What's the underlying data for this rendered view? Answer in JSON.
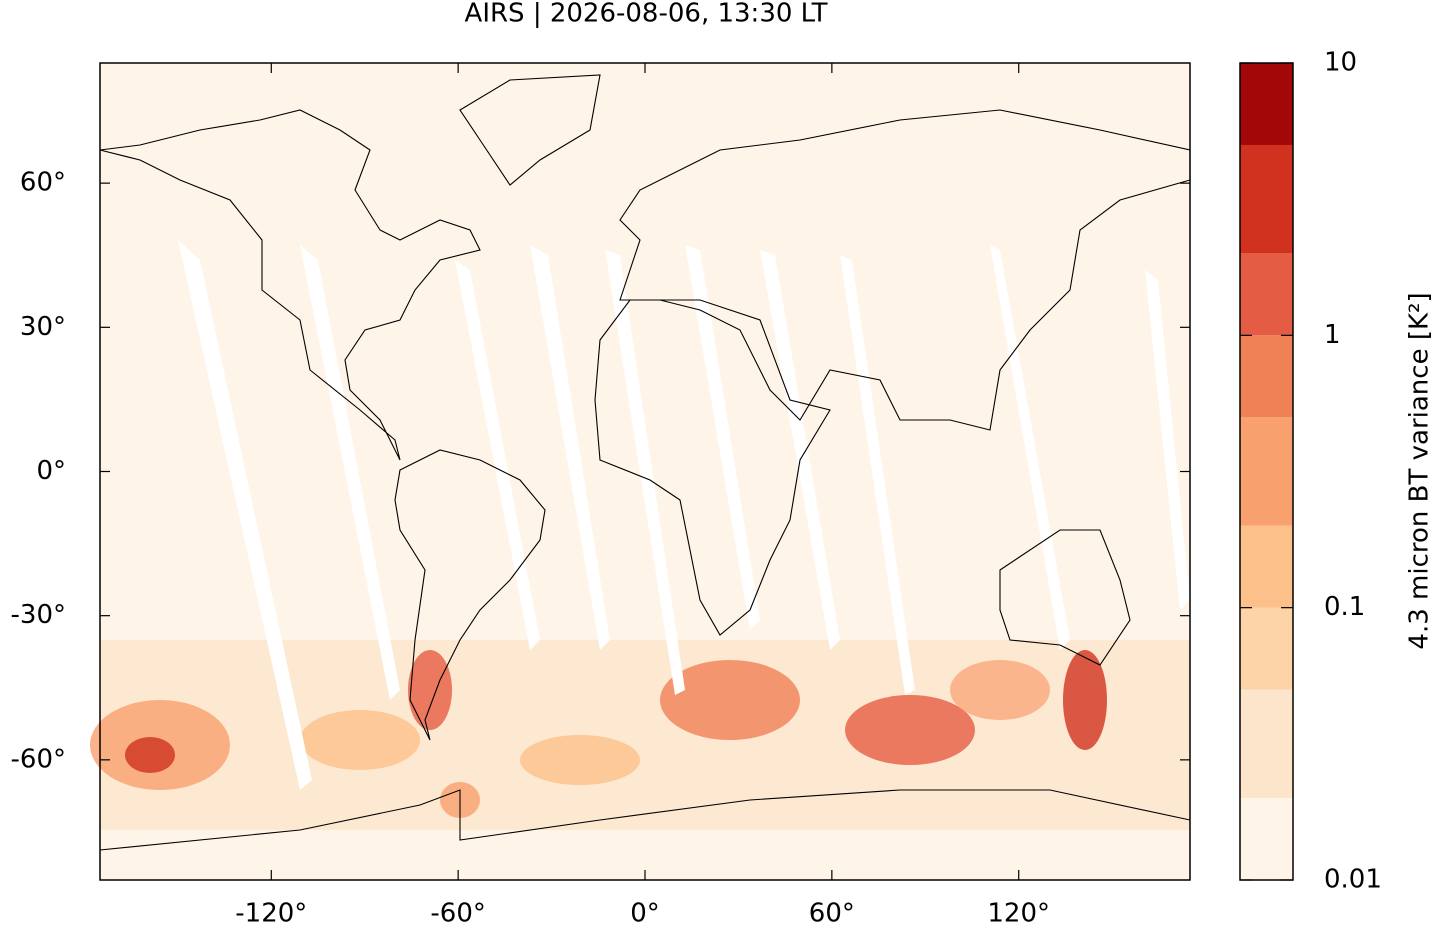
{
  "title": "AIRS | 2026-08-06, 13:30 LT",
  "map": {
    "xlim": [
      -175,
      175
    ],
    "ylim": [
      -85,
      85
    ],
    "xticks": [
      {
        "value": -120,
        "label": "-120°"
      },
      {
        "value": -60,
        "label": "-60°"
      },
      {
        "value": 0,
        "label": "0°"
      },
      {
        "value": 60,
        "label": "60°"
      },
      {
        "value": 120,
        "label": "120°"
      }
    ],
    "yticks": [
      {
        "value": -60,
        "label": "-60°"
      },
      {
        "value": -30,
        "label": "-30°"
      },
      {
        "value": 0,
        "label": "0°"
      },
      {
        "value": 30,
        "label": "30°"
      },
      {
        "value": 60,
        "label": "60°"
      }
    ]
  },
  "colorbar": {
    "label": "4.3 micron BT variance [K²]",
    "scale": "log",
    "lim": [
      0.01,
      10
    ],
    "ticks": [
      0.01,
      0.1,
      1,
      10
    ],
    "levels": [
      0.01,
      0.02,
      0.05,
      0.1,
      0.2,
      0.5,
      1,
      2,
      5,
      10
    ],
    "colors": [
      "#fef4e8",
      "#fde5cb",
      "#fcd4a8",
      "#fcc08a",
      "#f9a06f",
      "#f08157",
      "#e55c44",
      "#d0321f",
      "#a30808"
    ]
  }
}
